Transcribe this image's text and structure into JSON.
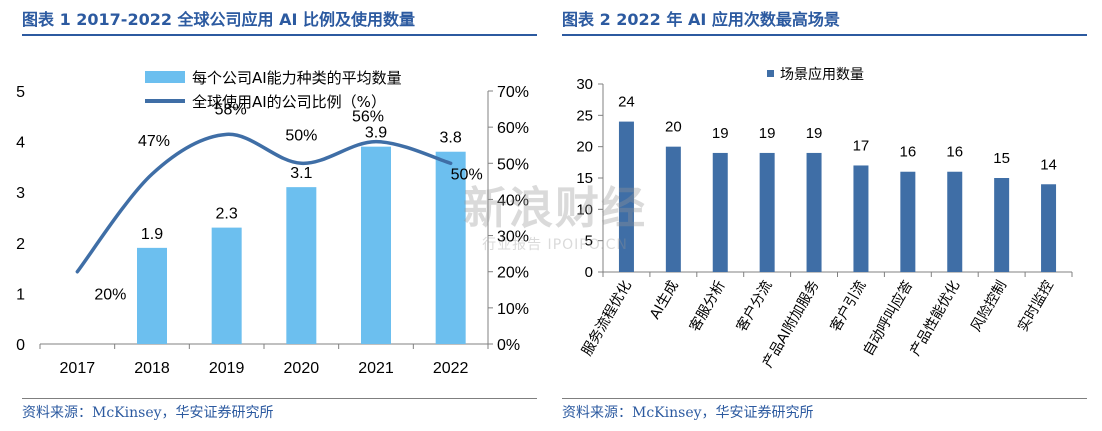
{
  "left_title": "图表 1 2017-2022 全球公司应用 AI 比例及使用数量",
  "right_title": "图表 2 2022 年 AI 应用次数最高场景",
  "left_source": "资料来源：McKinsey，华安证券研究所",
  "right_source": "资料来源：McKinsey，华安证券研究所",
  "watermark": {
    "main": "新浪财经",
    "sub": "行业报告 IPOIPO.CN"
  },
  "colors": {
    "title": "#2c5aa0",
    "bar_left": "#6cbfef",
    "line_left": "#3f6ea6",
    "bar_right": "#3f6ea6",
    "axis": "#808080",
    "text": "#000000"
  },
  "chart_data": [
    {
      "type": "bar+line",
      "categories": [
        "2017",
        "2018",
        "2019",
        "2020",
        "2021",
        "2022"
      ],
      "series": [
        {
          "name": "每个公司AI能力种类的平均数量",
          "type": "bar",
          "axis": "left",
          "values": [
            null,
            1.9,
            2.3,
            3.1,
            3.9,
            3.8
          ],
          "labels": [
            "",
            "1.9",
            "2.3",
            "3.1",
            "3.9",
            "3.8"
          ]
        },
        {
          "name": "全球使用AI的公司比例（%）",
          "type": "line",
          "axis": "right",
          "values": [
            20,
            47,
            58,
            50,
            56,
            50
          ],
          "labels": [
            "20%",
            "47%",
            "58%",
            "50%",
            "56%",
            "50%"
          ]
        }
      ],
      "y_left": {
        "range": [
          0,
          5
        ],
        "ticks": [
          "0",
          "1",
          "2",
          "3",
          "4",
          "5"
        ]
      },
      "y_right": {
        "range": [
          0,
          70
        ],
        "ticks": [
          "0%",
          "10%",
          "20%",
          "30%",
          "40%",
          "50%",
          "60%",
          "70%"
        ]
      },
      "legend_position": "top-center",
      "grid": false
    },
    {
      "type": "bar",
      "categories": [
        "服务流程优化",
        "AI生成",
        "客服分析",
        "客户分流",
        "产品AI附加服务",
        "客户引流",
        "自动呼叫应答",
        "产品性能优化",
        "风险控制",
        "实时监控"
      ],
      "series": [
        {
          "name": "场景应用数量",
          "values": [
            24,
            20,
            19,
            19,
            19,
            17,
            16,
            16,
            15,
            14
          ],
          "labels": [
            "24",
            "20",
            "19",
            "19",
            "19",
            "17",
            "16",
            "16",
            "15",
            "14"
          ]
        }
      ],
      "y": {
        "range": [
          0,
          30
        ],
        "ticks": [
          "0",
          "5",
          "10",
          "15",
          "20",
          "25",
          "30"
        ]
      },
      "legend_position": "top-left",
      "grid": false
    }
  ]
}
